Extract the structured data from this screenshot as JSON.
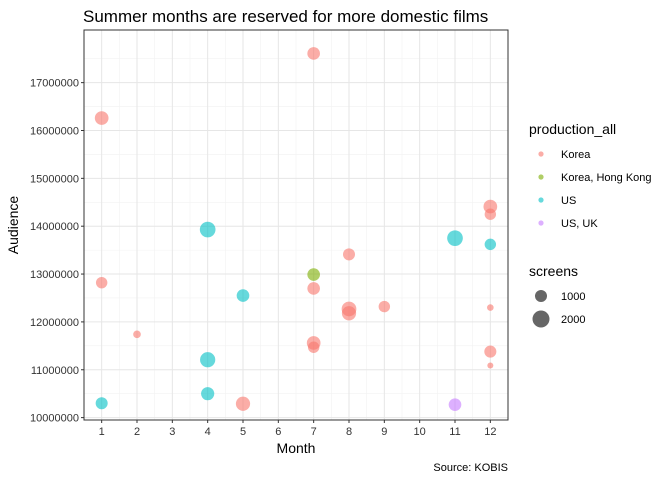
{
  "chart_data": {
    "type": "scatter",
    "title": "Summer months are reserved for more domestic films",
    "xlabel": "Month",
    "ylabel": "Audience",
    "caption": "Source: KOBIS",
    "xlim": [
      0.5,
      12.5
    ],
    "ylim": [
      9950000,
      18100000
    ],
    "x_ticks": [
      1,
      2,
      3,
      4,
      5,
      6,
      7,
      8,
      9,
      10,
      11,
      12
    ],
    "y_ticks": [
      10000000,
      11000000,
      12000000,
      13000000,
      14000000,
      15000000,
      16000000,
      17000000
    ],
    "y_tick_labels": [
      "10000000",
      "11000000",
      "12000000",
      "13000000",
      "14000000",
      "15000000",
      "16000000",
      "17000000"
    ],
    "grid": true,
    "legend_position": "right",
    "color_legend": {
      "title": "production_all",
      "entries": [
        {
          "label": "Korea",
          "color": "#F8766D"
        },
        {
          "label": "Korea, Hong Kong",
          "color": "#7CAE00"
        },
        {
          "label": "US",
          "color": "#00BFC4"
        },
        {
          "label": "US, UK",
          "color": "#C77CFF"
        }
      ]
    },
    "size_legend": {
      "title": "screens",
      "entries": [
        {
          "label": "1000",
          "value": 1000
        },
        {
          "label": "2000",
          "value": 2000
        }
      ]
    },
    "points": [
      {
        "month": 1,
        "audience": 16260000,
        "production": "Korea",
        "screens": 1300
      },
      {
        "month": 1,
        "audience": 12820000,
        "production": "Korea",
        "screens": 900
      },
      {
        "month": 1,
        "audience": 10300000,
        "production": "US",
        "screens": 1000
      },
      {
        "month": 2,
        "audience": 11740000,
        "production": "Korea",
        "screens": 400
      },
      {
        "month": 4,
        "audience": 13930000,
        "production": "US",
        "screens": 1700
      },
      {
        "month": 4,
        "audience": 11210000,
        "production": "US",
        "screens": 1600
      },
      {
        "month": 4,
        "audience": 10500000,
        "production": "US",
        "screens": 1200
      },
      {
        "month": 5,
        "audience": 12550000,
        "production": "US",
        "screens": 1100
      },
      {
        "month": 5,
        "audience": 10290000,
        "production": "Korea",
        "screens": 1400
      },
      {
        "month": 7,
        "audience": 17610000,
        "production": "Korea",
        "screens": 1100
      },
      {
        "month": 7,
        "audience": 12990000,
        "production": "Korea, Hong Kong",
        "screens": 1100
      },
      {
        "month": 7,
        "audience": 12700000,
        "production": "Korea",
        "screens": 1100
      },
      {
        "month": 7,
        "audience": 11560000,
        "production": "Korea",
        "screens": 1300
      },
      {
        "month": 7,
        "audience": 11470000,
        "production": "Korea",
        "screens": 900
      },
      {
        "month": 8,
        "audience": 13410000,
        "production": "Korea",
        "screens": 1000
      },
      {
        "month": 8,
        "audience": 12270000,
        "production": "Korea",
        "screens": 1500
      },
      {
        "month": 8,
        "audience": 12180000,
        "production": "Korea",
        "screens": 1400
      },
      {
        "month": 9,
        "audience": 12320000,
        "production": "Korea",
        "screens": 900
      },
      {
        "month": 11,
        "audience": 13750000,
        "production": "US",
        "screens": 1700
      },
      {
        "month": 11,
        "audience": 10270000,
        "production": "US, UK",
        "screens": 1100
      },
      {
        "month": 12,
        "audience": 14410000,
        "production": "Korea",
        "screens": 1300
      },
      {
        "month": 12,
        "audience": 14250000,
        "production": "Korea",
        "screens": 900
      },
      {
        "month": 12,
        "audience": 13620000,
        "production": "US",
        "screens": 900
      },
      {
        "month": 12,
        "audience": 12300000,
        "production": "Korea",
        "screens": 300
      },
      {
        "month": 12,
        "audience": 11380000,
        "production": "Korea",
        "screens": 1000
      },
      {
        "month": 12,
        "audience": 11090000,
        "production": "Korea",
        "screens": 250
      }
    ]
  }
}
